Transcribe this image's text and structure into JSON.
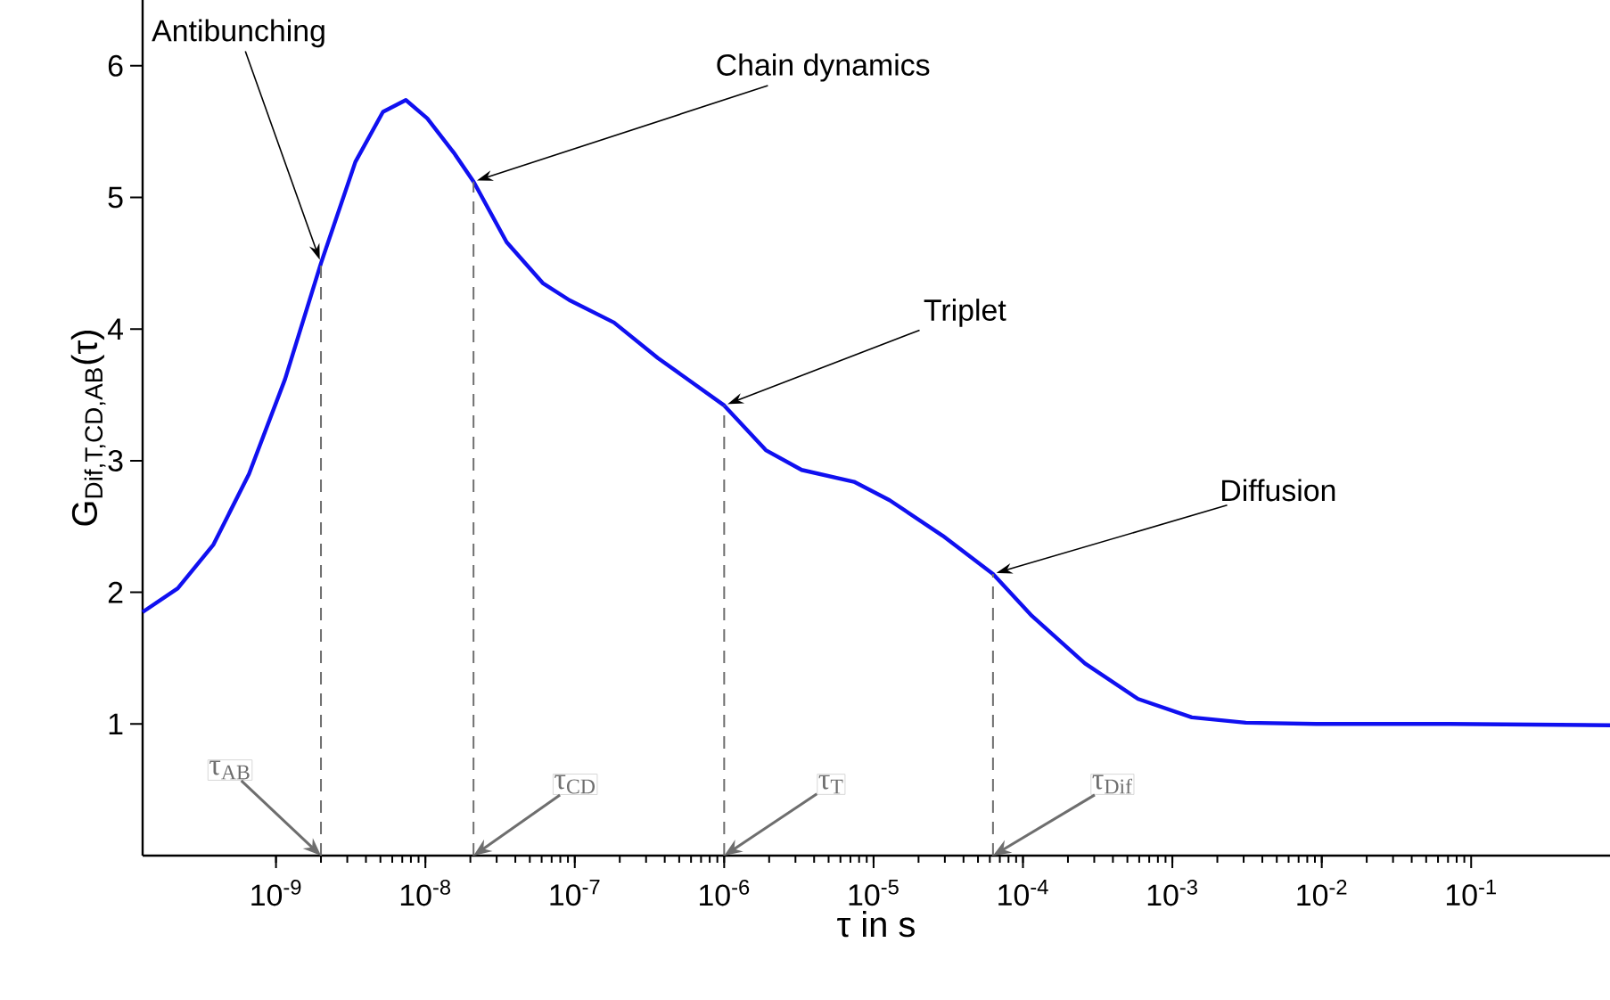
{
  "chart_data": {
    "type": "line",
    "xlabel": "τ in s",
    "ylabel": "G$_{Dif,T,CD,AB}$(τ)",
    "log": "x",
    "xlim": [
      1.28e-10,
      0.85
    ],
    "ylim": [
      0,
      6.5
    ],
    "xticks": [
      {
        "value": 1e-09,
        "label": "10$^{-9}$"
      },
      {
        "value": 1e-08,
        "label": "10$^{-8}$"
      },
      {
        "value": 1e-07,
        "label": "10$^{-7}$"
      },
      {
        "value": 1e-06,
        "label": "10$^{-6}$"
      },
      {
        "value": 1e-05,
        "label": "10$^{-5}$"
      },
      {
        "value": 0.0001,
        "label": "10$^{-4}$"
      },
      {
        "value": 0.001,
        "label": "10$^{-3}$"
      },
      {
        "value": 0.01,
        "label": "10$^{-2}$"
      },
      {
        "value": 0.1,
        "label": "10$^{-1}$"
      }
    ],
    "yticks": [
      1,
      2,
      3,
      4,
      5,
      6
    ],
    "x": [
      1.28e-10,
      2.2e-10,
      3.8e-10,
      6.6e-10,
      1.15e-09,
      2e-09,
      3.4e-09,
      5.2e-09,
      7.4e-09,
      1.03e-08,
      1.55e-08,
      2.1e-08,
      3.5e-08,
      6.1e-08,
      9.2e-08,
      1.83e-07,
      3.6e-07,
      1e-06,
      1.9e-06,
      3.3e-06,
      7.4e-06,
      1.28e-05,
      2.9e-05,
      6.3e-05,
      0.000115,
      0.00026,
      0.00059,
      0.00135,
      0.0031,
      0.0092,
      0.072,
      0.85
    ],
    "series": [
      {
        "color": "#1010f0",
        "values": [
          1.85,
          2.03,
          2.36,
          2.9,
          3.62,
          4.5,
          5.27,
          5.65,
          5.74,
          5.6,
          5.34,
          5.12,
          4.66,
          4.35,
          4.22,
          4.05,
          3.78,
          3.42,
          3.08,
          2.93,
          2.84,
          2.7,
          2.43,
          2.14,
          1.82,
          1.46,
          1.19,
          1.05,
          1.01,
          1.0,
          1.0,
          0.99
        ]
      }
    ],
    "marker": "none",
    "line_style": "solid",
    "annotations": [
      {
        "text": "Antibunching",
        "x": 2e-09,
        "y": 4.5
      },
      {
        "text": "Chain dynamics",
        "x": 2.1e-08,
        "y": 5.12
      },
      {
        "text": "Triplet",
        "x": 1e-06,
        "y": 3.42
      },
      {
        "text": "Diffusion",
        "x": 6.3e-05,
        "y": 2.14
      }
    ],
    "ref_lines": [
      {
        "axis": "x",
        "value": 2e-09,
        "label": "τ$_{AB}$",
        "color": "#6e6e6e",
        "line_style": "dashed"
      },
      {
        "axis": "x",
        "value": 2.1e-08,
        "label": "τ$_{CD}$",
        "color": "#6e6e6e",
        "line_style": "dashed"
      },
      {
        "axis": "x",
        "value": 1e-06,
        "label": "τ$_{T}$",
        "color": "#6e6e6e",
        "line_style": "dashed"
      },
      {
        "axis": "x",
        "value": 6.3e-05,
        "label": "τ$_{Dif}$",
        "color": "#6e6e6e",
        "line_style": "dashed"
      }
    ]
  }
}
